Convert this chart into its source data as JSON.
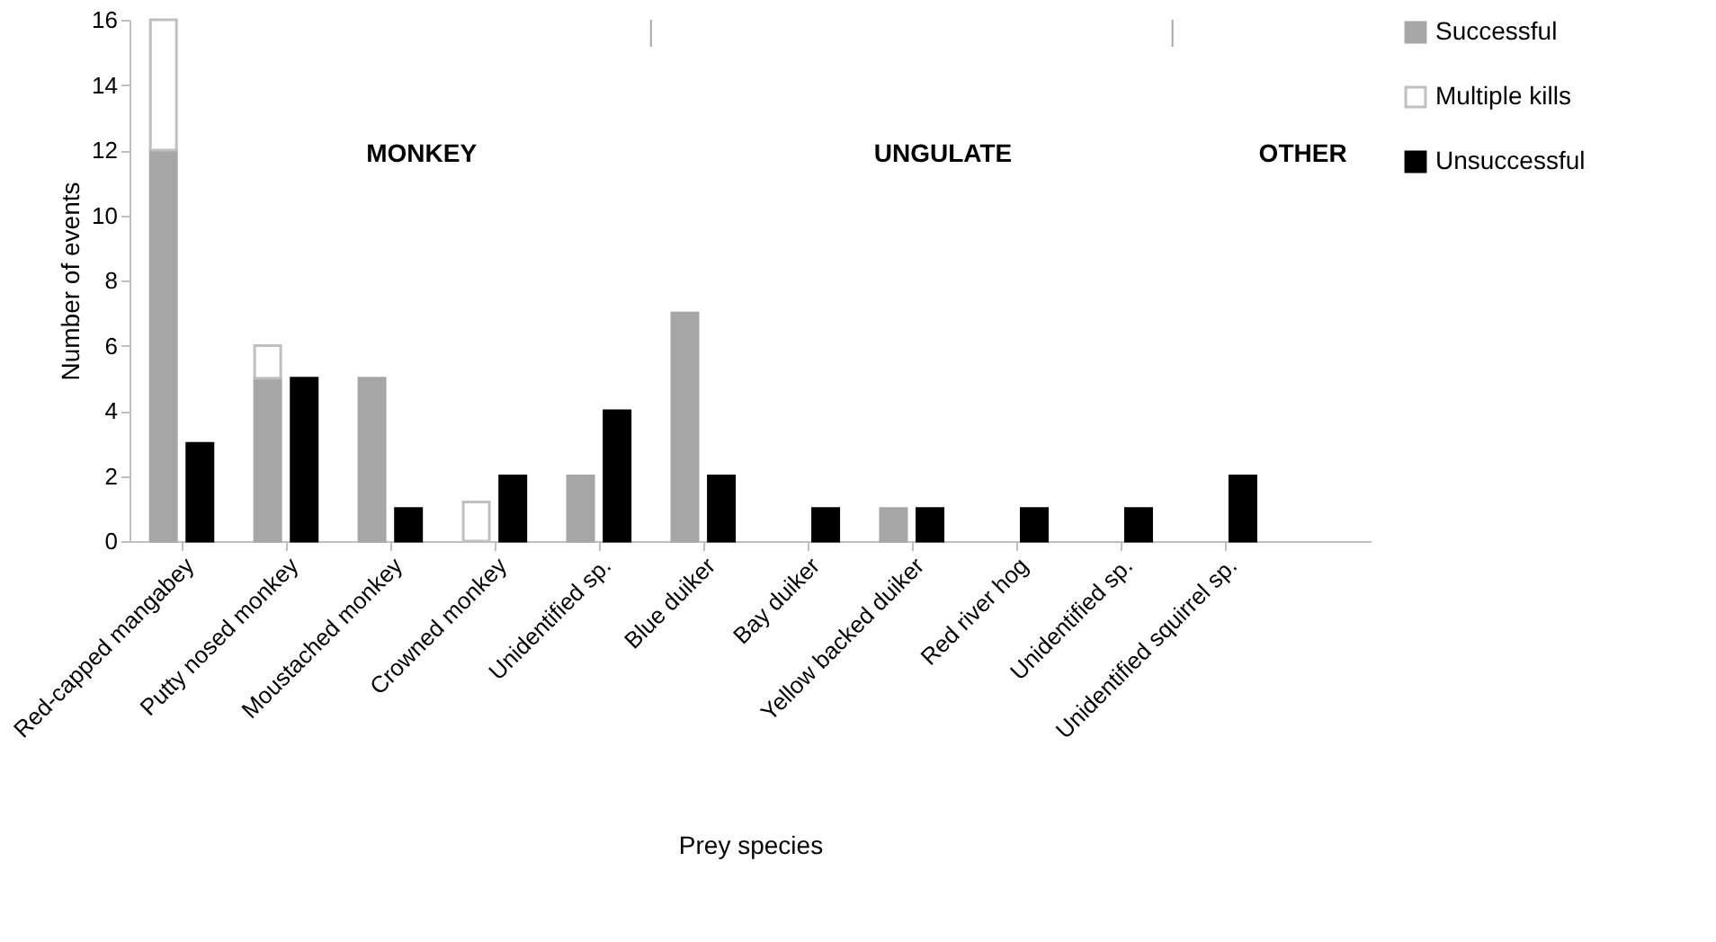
{
  "chart_data": {
    "type": "bar",
    "xlabel": "Prey species",
    "ylabel": "Number of events",
    "categories": [
      "Red-capped mangabey",
      "Putty nosed monkey",
      "Moustached monkey",
      "Crowned monkey",
      "Unidentified sp.",
      "Blue duiker",
      "Bay duiker",
      "Yellow backed duiker",
      "Red river hog",
      "Unidentified sp.",
      "Unidentified squirrel sp."
    ],
    "series": [
      {
        "name": "Successful",
        "color": "#a6a6a6",
        "values": [
          12,
          5,
          5,
          0,
          2,
          7,
          0,
          1,
          0,
          0,
          0
        ]
      },
      {
        "name": "Multiple kills",
        "color": "#ffffff",
        "values": [
          4,
          1,
          0,
          1.2,
          0,
          0,
          0,
          0,
          0,
          0,
          0
        ],
        "base": [
          12,
          5,
          null,
          0,
          null,
          null,
          null,
          null,
          null,
          null,
          null
        ]
      },
      {
        "name": "Unsuccessful",
        "color": "#000000",
        "values": [
          3,
          5,
          1,
          2,
          4,
          2,
          1,
          1,
          1,
          1,
          2
        ]
      }
    ],
    "ylim": [
      0,
      16
    ],
    "yticks": [
      0,
      2,
      4,
      6,
      8,
      10,
      12,
      14,
      16
    ],
    "annotations": [
      "MONKEY",
      "UNGULATE",
      "OTHER"
    ],
    "grid": false,
    "legend": "right"
  }
}
